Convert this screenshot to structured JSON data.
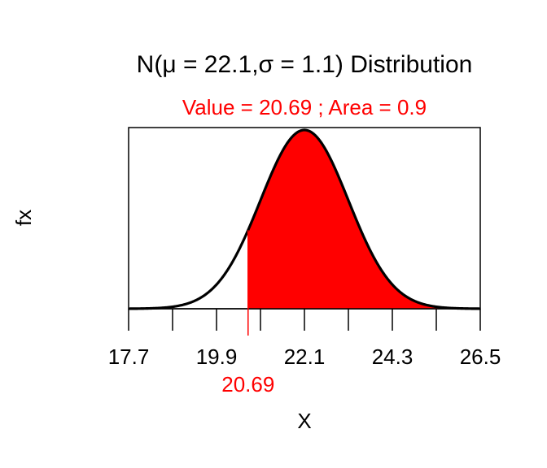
{
  "chart_data": {
    "type": "area",
    "title": "N(μ = 22.1,σ = 1.1) Distribution",
    "subtitle": "Value = 20.69 ; Area =   0.9",
    "distribution": {
      "name": "normal",
      "mean": 22.1,
      "sd": 1.1
    },
    "shaded_region": {
      "from": 20.69,
      "to": 26.5,
      "area": 0.9,
      "color": "#ff0000"
    },
    "marker": {
      "value": 20.69,
      "label": "20.69",
      "color": "#ff0000"
    },
    "xlabel": "X",
    "ylabel": "fx",
    "xlim": [
      17.7,
      26.5
    ],
    "x_ticks": [
      17.7,
      18.8,
      19.9,
      21.0,
      22.1,
      23.2,
      24.3,
      25.4,
      26.5
    ],
    "x_tick_labels": [
      {
        "value": 17.7,
        "label": "17.7"
      },
      {
        "value": 19.9,
        "label": "19.9"
      },
      {
        "value": 22.1,
        "label": "22.1"
      },
      {
        "value": 24.3,
        "label": "24.3"
      },
      {
        "value": 26.5,
        "label": "26.5"
      }
    ],
    "curve_color": "#000000",
    "grid": false,
    "legend": "none"
  }
}
